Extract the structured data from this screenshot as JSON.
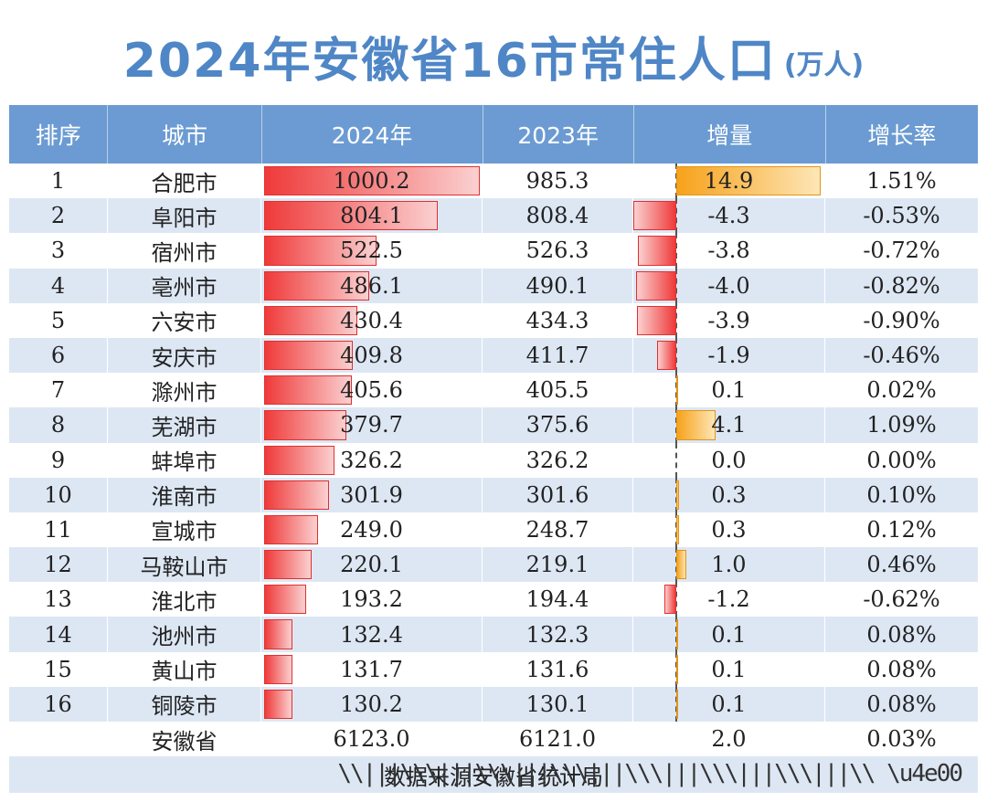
{
  "chart_data": {
    "type": "table",
    "title": "2024年安徽省16市常住人口",
    "unit": "(万人)",
    "columns": [
      "排序",
      "城市",
      "2024年",
      "2023年",
      "增量",
      "增长率"
    ],
    "rows": [
      {
        "rank": "1",
        "city": "合肥市",
        "y2024": "1000.2",
        "y2023": "985.3",
        "delta": "14.9",
        "growth": "1.51%"
      },
      {
        "rank": "2",
        "city": "阜阳市",
        "y2024": "804.1",
        "y2023": "808.4",
        "delta": "-4.3",
        "growth": "-0.53%"
      },
      {
        "rank": "3",
        "city": "宿州市",
        "y2024": "522.5",
        "y2023": "526.3",
        "delta": "-3.8",
        "growth": "-0.72%"
      },
      {
        "rank": "4",
        "city": "亳州市",
        "y2024": "486.1",
        "y2023": "490.1",
        "delta": "-4.0",
        "growth": "-0.82%"
      },
      {
        "rank": "5",
        "city": "六安市",
        "y2024": "430.4",
        "y2023": "434.3",
        "delta": "-3.9",
        "growth": "-0.90%"
      },
      {
        "rank": "6",
        "city": "安庆市",
        "y2024": "409.8",
        "y2023": "411.7",
        "delta": "-1.9",
        "growth": "-0.46%"
      },
      {
        "rank": "7",
        "city": "滁州市",
        "y2024": "405.6",
        "y2023": "405.5",
        "delta": "0.1",
        "growth": "0.02%"
      },
      {
        "rank": "8",
        "city": "芜湖市",
        "y2024": "379.7",
        "y2023": "375.6",
        "delta": "4.1",
        "growth": "1.09%"
      },
      {
        "rank": "9",
        "city": "蚌埠市",
        "y2024": "326.2",
        "y2023": "326.2",
        "delta": "0.0",
        "growth": "0.00%"
      },
      {
        "rank": "10",
        "city": "淮南市",
        "y2024": "301.9",
        "y2023": "301.6",
        "delta": "0.3",
        "growth": "0.10%"
      },
      {
        "rank": "11",
        "city": "宣城市",
        "y2024": "249.0",
        "y2023": "248.7",
        "delta": "0.3",
        "growth": "0.12%"
      },
      {
        "rank": "12",
        "city": "马鞍山市",
        "y2024": "220.1",
        "y2023": "219.1",
        "delta": "1.0",
        "growth": "0.46%"
      },
      {
        "rank": "13",
        "city": "淮北市",
        "y2024": "193.2",
        "y2023": "194.4",
        "delta": "-1.2",
        "growth": "-0.62%"
      },
      {
        "rank": "14",
        "city": "池州市",
        "y2024": "132.4",
        "y2023": "132.3",
        "delta": "0.1",
        "growth": "0.08%"
      },
      {
        "rank": "15",
        "city": "黄山市",
        "y2024": "131.7",
        "y2023": "131.6",
        "delta": "0.1",
        "growth": "0.08%"
      },
      {
        "rank": "16",
        "city": "铜陵市",
        "y2024": "130.2",
        "y2023": "130.1",
        "delta": "0.1",
        "growth": "0.08%"
      }
    ],
    "total": {
      "city": "安徽省",
      "y2024": "6123.0",
      "y2023": "6121.0",
      "delta": "2.0",
      "growth": "0.03%"
    },
    "footer": "数据来源安徽省统计局",
    "watermark": "\\\\|||\\\\\\|||\\\\\\|||\\\\\\|||\\\\\\|||\\\\\\|||\\\\\\|||\\\\ \\u4e00",
    "colors": {
      "header": "#6b9bd2",
      "title": "#4f86c6",
      "bar_2024": "#ef3a3a",
      "bar_positive": "#f7a21b",
      "bar_negative": "#ef3a3a",
      "row_alt": "#dde7f4"
    }
  }
}
